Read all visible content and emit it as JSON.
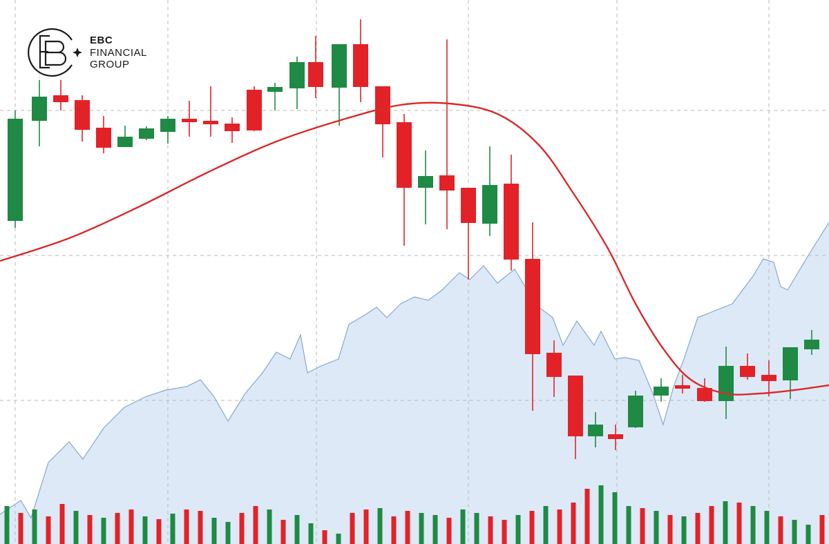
{
  "logo": {
    "line1": "EBC",
    "line2": "FINANCIAL",
    "line3": "GROUP"
  },
  "chart_data": {
    "type": "candlestick",
    "xlim": [
      0,
      1200
    ],
    "ylim": [
      0,
      788
    ],
    "xticks": [
      22,
      243,
      458,
      678,
      893,
      1113
    ],
    "yticks": [
      208,
      418,
      628
    ],
    "grid": true,
    "up_color": "#1e8a44",
    "down_color": "#e32228",
    "x": [
      22,
      57,
      88,
      119,
      150,
      181,
      212,
      243,
      274,
      305,
      336,
      368,
      398,
      430,
      457,
      491,
      522,
      554,
      585,
      616,
      647,
      678,
      709,
      740,
      771,
      802,
      833,
      862,
      891,
      920,
      957,
      988,
      1020,
      1051,
      1082,
      1113,
      1144,
      1175
    ],
    "open": [
      468,
      613,
      650,
      643,
      603,
      575,
      587,
      597,
      616,
      613,
      609,
      658,
      655,
      660,
      698,
      661,
      724,
      663,
      611,
      516,
      534,
      516,
      464,
      522,
      413,
      277,
      244,
      156,
      159,
      169,
      215,
      230,
      226,
      207,
      258,
      245,
      237,
      282
    ],
    "high": [
      628,
      683,
      678,
      650,
      620,
      606,
      605,
      620,
      642,
      663,
      618,
      663,
      668,
      706,
      736,
      724,
      760,
      663,
      623,
      570,
      731,
      516,
      576,
      564,
      466,
      295,
      244,
      191,
      173,
      222,
      240,
      245,
      240,
      286,
      276,
      266,
      285,
      310
    ],
    "low": [
      458,
      576,
      628,
      583,
      566,
      575,
      585,
      580,
      590,
      590,
      581,
      598,
      628,
      630,
      646,
      606,
      640,
      560,
      432,
      463,
      456,
      383,
      446,
      396,
      193,
      213,
      123,
      140,
      136,
      168,
      206,
      218,
      206,
      181,
      238,
      214,
      210,
      274
    ],
    "close": [
      616,
      648,
      640,
      600,
      574,
      590,
      602,
      616,
      611,
      608,
      598,
      599,
      662,
      698,
      662,
      724,
      662,
      608,
      516,
      533,
      512,
      465,
      520,
      412,
      275,
      242,
      156,
      173,
      152,
      215,
      228,
      225,
      207,
      258,
      242,
      236,
      285,
      296
    ],
    "moving_average": {
      "color": "#d92a2a",
      "x": [
        0,
        100,
        200,
        300,
        400,
        500,
        580,
        650,
        720,
        780,
        830,
        880,
        920,
        960,
        1000,
        1050,
        1100,
        1150,
        1200
      ],
      "values": [
        410,
        443,
        488,
        538,
        583,
        616,
        636,
        638,
        623,
        578,
        508,
        428,
        348,
        283,
        238,
        218,
        218,
        223,
        230
      ]
    },
    "area": {
      "color": "#dde9f6",
      "line_color": "#86a8cc",
      "x": [
        0,
        30,
        45,
        70,
        100,
        120,
        150,
        180,
        210,
        240,
        270,
        290,
        310,
        330,
        355,
        380,
        400,
        420,
        435,
        445,
        465,
        490,
        505,
        530,
        545,
        560,
        580,
        600,
        620,
        640,
        665,
        680,
        700,
        720,
        745,
        760,
        780,
        800,
        815,
        835,
        860,
        870,
        890,
        905,
        925,
        945,
        960,
        975,
        990,
        1010,
        1035,
        1060,
        1090,
        1105,
        1120,
        1130,
        1140,
        1170,
        1200
      ],
      "values": [
        43,
        63,
        38,
        118,
        148,
        123,
        168,
        198,
        213,
        223,
        228,
        238,
        213,
        178,
        218,
        248,
        278,
        268,
        303,
        248,
        258,
        268,
        318,
        333,
        343,
        328,
        348,
        358,
        353,
        368,
        393,
        383,
        403,
        378,
        398,
        373,
        343,
        328,
        288,
        323,
        288,
        308,
        268,
        270,
        266,
        218,
        173,
        228,
        268,
        328,
        338,
        348,
        388,
        413,
        408,
        373,
        368,
        418,
        466
      ]
    },
    "volume": {
      "x": [
        10,
        30,
        50,
        70,
        90,
        110,
        130,
        150,
        170,
        190,
        210,
        230,
        250,
        270,
        290,
        310,
        330,
        350,
        370,
        390,
        410,
        430,
        450,
        470,
        490,
        510,
        530,
        550,
        570,
        590,
        610,
        630,
        650,
        670,
        690,
        710,
        730,
        750,
        770,
        790,
        810,
        830,
        850,
        870,
        890,
        910,
        930,
        950,
        970,
        990,
        1010,
        1030,
        1050,
        1070,
        1090,
        1110,
        1130,
        1150,
        1170,
        1190
      ],
      "values": [
        55,
        45,
        50,
        40,
        58,
        48,
        42,
        38,
        45,
        50,
        40,
        36,
        44,
        50,
        48,
        38,
        32,
        45,
        55,
        50,
        35,
        42,
        30,
        20,
        15,
        45,
        50,
        52,
        40,
        48,
        45,
        42,
        38,
        50,
        45,
        40,
        35,
        42,
        48,
        55,
        50,
        60,
        80,
        85,
        75,
        55,
        52,
        48,
        42,
        40,
        45,
        55,
        62,
        60,
        55,
        48,
        40,
        35,
        28,
        42
      ],
      "colors": [
        "#1e8a44",
        "#e32228",
        "#1e8a44",
        "#e32228",
        "#e32228",
        "#1e8a44",
        "#e32228",
        "#1e8a44",
        "#e32228",
        "#e32228",
        "#1e8a44",
        "#e32228",
        "#1e8a44",
        "#e32228",
        "#e32228",
        "#1e8a44",
        "#1e8a44",
        "#e32228",
        "#e32228",
        "#1e8a44",
        "#e32228",
        "#1e8a44",
        "#1e8a44",
        "#e32228",
        "#1e8a44",
        "#e32228",
        "#e32228",
        "#1e8a44",
        "#e32228",
        "#e32228",
        "#1e8a44",
        "#1e8a44",
        "#e32228",
        "#1e8a44",
        "#1e8a44",
        "#e32228",
        "#e32228",
        "#1e8a44",
        "#e32228",
        "#1e8a44",
        "#e32228",
        "#e32228",
        "#e32228",
        "#1e8a44",
        "#1e8a44",
        "#1e8a44",
        "#e32228",
        "#1e8a44",
        "#e32228",
        "#1e8a44",
        "#e32228",
        "#e32228",
        "#1e8a44",
        "#e32228",
        "#1e8a44",
        "#1e8a44",
        "#e32228",
        "#1e8a44",
        "#1e8a44",
        "#e32228"
      ]
    }
  }
}
